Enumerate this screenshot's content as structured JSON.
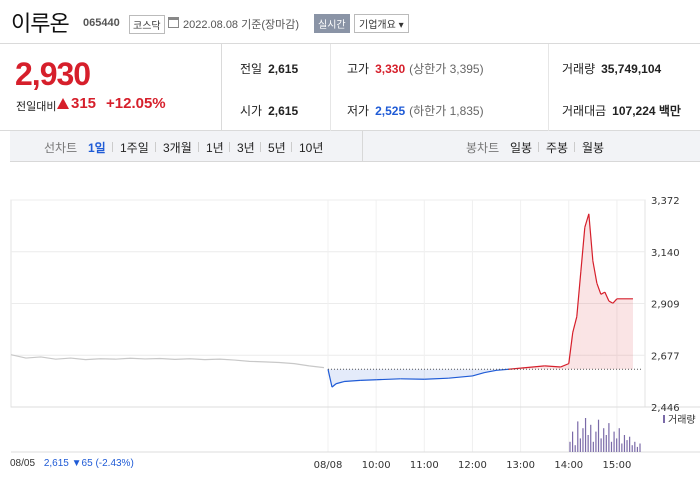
{
  "header": {
    "name": "이루온",
    "code": "065440",
    "market": "코스닥",
    "date_text": "2022.08.08 기준(장마감)",
    "realtime_label": "실시간",
    "info_label": "기업개요 ▾"
  },
  "price": {
    "current": "2,930",
    "change_label": "전일대비",
    "change_value": "315",
    "change_rate": "+12.05%"
  },
  "stats": {
    "prev_label": "전일",
    "prev_value": "2,615",
    "high_label": "고가",
    "high_value": "3,330",
    "high_sub": "(상한가 3,395)",
    "volume_label": "거래량",
    "volume_value": "35,749,104",
    "open_label": "시가",
    "open_value": "2,615",
    "low_label": "저가",
    "low_value": "2,525",
    "low_sub": "(하한가 1,835)",
    "amount_label": "거래대금",
    "amount_value": "107,224 백만"
  },
  "tabs": {
    "line_label": "선차트",
    "line_tabs": [
      "1일",
      "1주일",
      "3개월",
      "1년",
      "3년",
      "5년",
      "10년"
    ],
    "active_line_tab": "1일",
    "candle_label": "봉차트",
    "candle_tabs": [
      "일봉",
      "주봉",
      "월봉"
    ]
  },
  "footer": {
    "prev_date": "08/05",
    "prev_close": "2,615",
    "prev_change": "▼65",
    "prev_rate": "(-2.43%)",
    "volume_legend": "거래량"
  },
  "colors": {
    "up": "#d61f2b",
    "down": "#1f5bd6",
    "prev_line": "#c8c8c8"
  },
  "chart_data": {
    "type": "line",
    "y_ticks": [
      "3,372",
      "3,140",
      "2,909",
      "2,677",
      "2,446"
    ],
    "ylim": [
      2446,
      3372
    ],
    "baseline": 2615,
    "x_ticks": [
      "08/08",
      "10:00",
      "11:00",
      "12:00",
      "13:00",
      "14:00",
      "15:00"
    ],
    "grid": true,
    "prev_day_series": [
      2680,
      2665,
      2670,
      2660,
      2665,
      2658,
      2662,
      2660,
      2664,
      2661,
      2663,
      2659,
      2662,
      2658,
      2660,
      2656,
      2650,
      2648,
      2645,
      2640,
      2630,
      2622
    ],
    "today_series": [
      {
        "t": "09:00",
        "v": 2615
      },
      {
        "t": "09:05",
        "v": 2535
      },
      {
        "t": "09:10",
        "v": 2550
      },
      {
        "t": "09:20",
        "v": 2560
      },
      {
        "t": "09:40",
        "v": 2565
      },
      {
        "t": "10:00",
        "v": 2568
      },
      {
        "t": "10:30",
        "v": 2572
      },
      {
        "t": "11:00",
        "v": 2570
      },
      {
        "t": "11:30",
        "v": 2575
      },
      {
        "t": "12:00",
        "v": 2585
      },
      {
        "t": "12:15",
        "v": 2600
      },
      {
        "t": "12:30",
        "v": 2610
      },
      {
        "t": "12:45",
        "v": 2615
      },
      {
        "t": "13:00",
        "v": 2620
      },
      {
        "t": "13:30",
        "v": 2630
      },
      {
        "t": "13:50",
        "v": 2625
      },
      {
        "t": "14:00",
        "v": 2640
      },
      {
        "t": "14:05",
        "v": 2780
      },
      {
        "t": "14:10",
        "v": 2850
      },
      {
        "t": "14:15",
        "v": 3050
      },
      {
        "t": "14:20",
        "v": 3250
      },
      {
        "t": "14:25",
        "v": 3310
      },
      {
        "t": "14:30",
        "v": 3100
      },
      {
        "t": "14:35",
        "v": 3000
      },
      {
        "t": "14:40",
        "v": 2950
      },
      {
        "t": "14:45",
        "v": 2960
      },
      {
        "t": "14:50",
        "v": 2920
      },
      {
        "t": "14:55",
        "v": 2910
      },
      {
        "t": "15:00",
        "v": 2930
      },
      {
        "t": "15:20",
        "v": 2930
      }
    ],
    "volume": [
      0.3,
      0.6,
      0.2,
      0.9,
      0.4,
      0.7,
      1.0,
      0.5,
      0.8,
      0.3,
      0.6,
      0.95,
      0.4,
      0.7,
      0.5,
      0.85,
      0.3,
      0.6,
      0.4,
      0.7,
      0.25,
      0.5,
      0.35,
      0.45,
      0.2,
      0.3,
      0.15,
      0.25
    ]
  }
}
